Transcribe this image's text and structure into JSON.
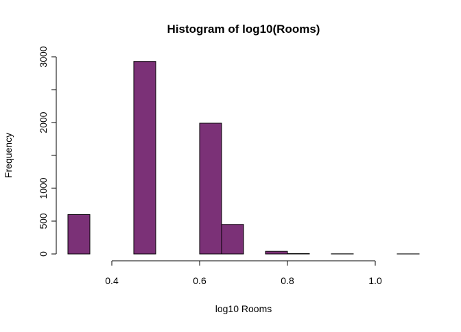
{
  "chart_data": {
    "type": "bar",
    "title": "Histogram of log10(Rooms)",
    "xlabel": "log10 Rooms",
    "ylabel": "Frequency",
    "bar_color": "#7b3177",
    "bar_border_color": "#000000",
    "bin_edges": [
      0.3,
      0.35,
      0.4,
      0.45,
      0.5,
      0.55,
      0.6,
      0.65,
      0.7,
      0.75,
      0.8,
      0.85,
      0.9,
      0.95,
      1.0,
      1.05,
      1.1
    ],
    "values": [
      600,
      0,
      0,
      2930,
      0,
      0,
      1990,
      450,
      0,
      40,
      5,
      0,
      2,
      0,
      0,
      1
    ],
    "xlim": [
      0.3,
      1.1
    ],
    "ylim": [
      0,
      3000
    ],
    "x_ticks": [
      {
        "value": 0.4,
        "label": "0.4"
      },
      {
        "value": 0.6,
        "label": "0.6"
      },
      {
        "value": 0.8,
        "label": "0.8"
      },
      {
        "value": 1.0,
        "label": "1.0"
      }
    ],
    "y_ticks": [
      {
        "value": 0,
        "label": "0"
      },
      {
        "value": 500,
        "label": "500"
      },
      {
        "value": 1000,
        "label": "1000"
      },
      {
        "value": 1500,
        "label": ""
      },
      {
        "value": 2000,
        "label": "2000"
      },
      {
        "value": 2500,
        "label": ""
      },
      {
        "value": 3000,
        "label": "3000"
      }
    ],
    "grid": false,
    "legend": "none"
  }
}
